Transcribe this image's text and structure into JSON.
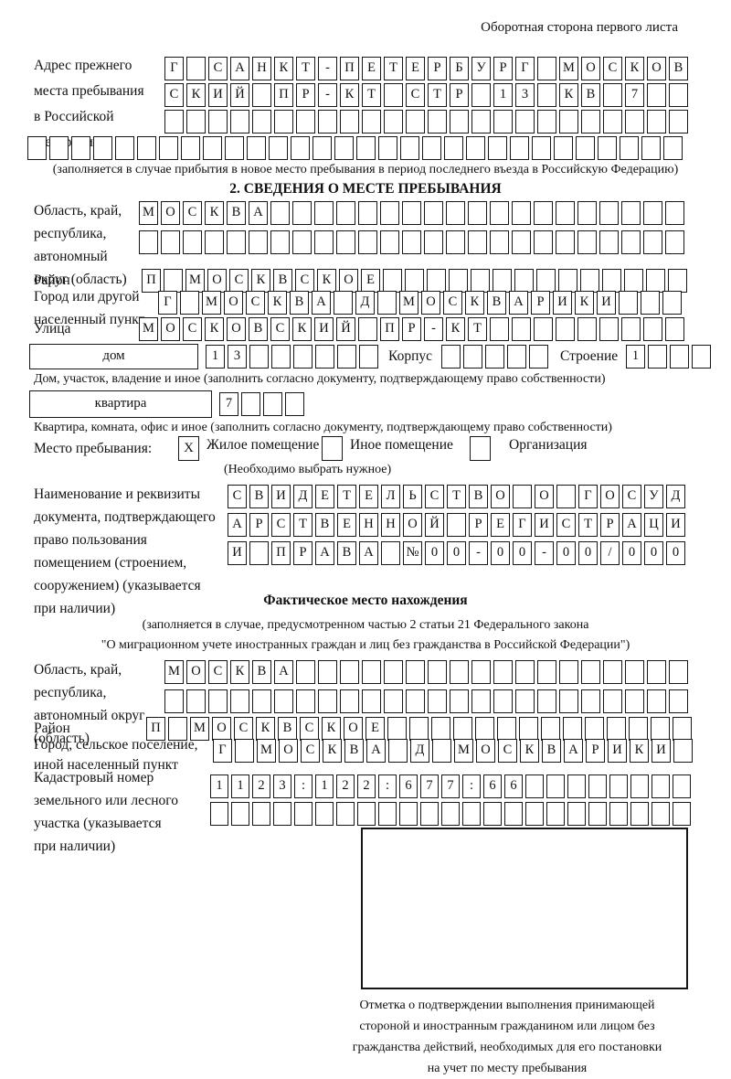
{
  "header": {
    "right_note": "Оборотная сторона первого листа"
  },
  "prev_address": {
    "label_lines": [
      "Адрес прежнего",
      "места пребывания",
      "в Российской",
      "Федерации"
    ],
    "row1": {
      "len": 24,
      "text": "Г САНКТ-ПЕТЕРБУРГ МОСКОВ"
    },
    "row2": {
      "len": 24,
      "text": "СКИЙ ПР-КТ СТР 13 КВ 7"
    },
    "row3": {
      "len": 24,
      "text": ""
    },
    "row4": {
      "len": 30,
      "text": ""
    },
    "note": "(заполняется в случае прибытия в новое место пребывания в период последнего въезда в Российскую Федерацию)"
  },
  "section2": {
    "title": "2. СВЕДЕНИЯ О МЕСТЕ ПРЕБЫВАНИЯ",
    "region": {
      "label_lines": [
        "Область, край,",
        "республика,",
        "автономный",
        "округ (область)"
      ],
      "row1": {
        "len": 25,
        "text": "МОСКВА"
      },
      "row2": {
        "len": 25,
        "text": ""
      }
    },
    "district": {
      "label": "Район",
      "row": {
        "len": 25,
        "text": "П МОСКВСКОЕ"
      }
    },
    "city": {
      "label_lines": [
        "Город или другой",
        "населенный пункт"
      ],
      "row": {
        "len": 24,
        "text": "Г МОСКВА Д МОСКВАРИКИ"
      }
    },
    "street": {
      "label": "Улица",
      "row": {
        "len": 25,
        "text": "МОСКОВСКИЙ ПР-КТ"
      }
    },
    "house": {
      "type_value": "дом",
      "number": {
        "len": 8,
        "text": "13"
      },
      "korpus_label": "Корпус",
      "korpus": {
        "len": 5,
        "text": ""
      },
      "stroenie_label": "Строение",
      "stroenie": {
        "len": 4,
        "text": "1"
      },
      "note": "Дом, участок, владение и иное (заполнить согласно документу, подтверждающему право собственности)"
    },
    "apartment": {
      "type_value": "квартира",
      "number": {
        "len": 4,
        "text": "7"
      },
      "note": "Квартира, комната, офис и иное (заполнить согласно документу, подтверждающему право собственности)"
    },
    "stay_type": {
      "label": "Место пребывания:",
      "options": [
        {
          "label": "Жилое помещение",
          "checked": "X"
        },
        {
          "label": "Иное помещение",
          "checked": ""
        },
        {
          "label": "Организация",
          "checked": ""
        }
      ],
      "note": "(Необходимо выбрать нужное)"
    },
    "document": {
      "label_lines": [
        "Наименование и реквизиты",
        "документа, подтверждающего",
        "право пользования",
        "помещением (строением,",
        "сооружением) (указывается",
        "при наличии)"
      ],
      "row1": {
        "len": 21,
        "text": "СВИДЕТЕЛЬСТВО О ГОСУД"
      },
      "row2": {
        "len": 21,
        "text": "АРСТВЕННОЙ РЕГИСТРАЦИ"
      },
      "row3": {
        "len": 21,
        "text": "И ПРАВА №00-00-00/000"
      }
    }
  },
  "actual_location": {
    "title": "Фактическое место нахождения",
    "note_line1": "(заполняется в случае, предусмотренном частью 2 статьи 21 Федерального закона",
    "note_line2": "\"О миграционном учете иностранных граждан и лиц без гражданства в Российской Федерации\")",
    "region": {
      "label_lines": [
        "Область, край,",
        "республика,",
        "автономный округ",
        "(область)"
      ],
      "row1": {
        "len": 24,
        "text": "МОСКВА"
      },
      "row2": {
        "len": 24,
        "text": ""
      }
    },
    "district": {
      "label": "Район",
      "row": {
        "len": 25,
        "text": "П МОСКВСКОЕ"
      }
    },
    "city": {
      "label_lines": [
        "Город, сельское поселение,",
        "иной населенный пункт"
      ],
      "row": {
        "len": 22,
        "text": "Г МОСКВА Д МОСКВАРИКИ"
      }
    },
    "cadastral": {
      "label_lines": [
        "Кадастровый номер",
        "земельного или лесного",
        "участка (указывается",
        "при наличии)"
      ],
      "row1": {
        "len": 23,
        "text": "1123:122:677:66"
      },
      "row2": {
        "len": 23,
        "text": ""
      }
    }
  },
  "stamp": {
    "caption_lines": [
      "Отметка о подтверждении выполнения принимающей",
      "стороной и иностранным гражданином или лицом без",
      "гражданства действий, необходимых для его постановки",
      "на учет по месту пребывания"
    ]
  }
}
